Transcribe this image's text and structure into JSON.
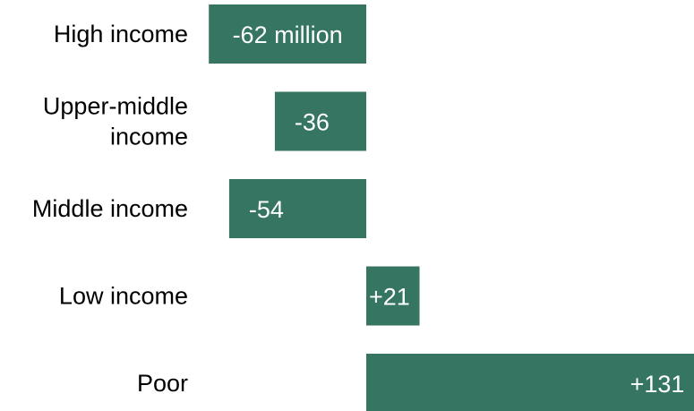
{
  "chart_data": {
    "type": "bar",
    "orientation": "horizontal",
    "categories": [
      [
        "High income"
      ],
      [
        "Upper-middle",
        "income"
      ],
      [
        "Middle income"
      ],
      [
        "Low income"
      ],
      [
        "Poor"
      ]
    ],
    "values": [
      -62,
      -36,
      -54,
      21,
      131
    ],
    "value_labels": [
      "-62 million",
      "-36",
      "-54",
      "+21",
      "+131"
    ],
    "bar_color": "#357561",
    "label_color": "#ffffff",
    "grid": false,
    "legend": "none"
  }
}
